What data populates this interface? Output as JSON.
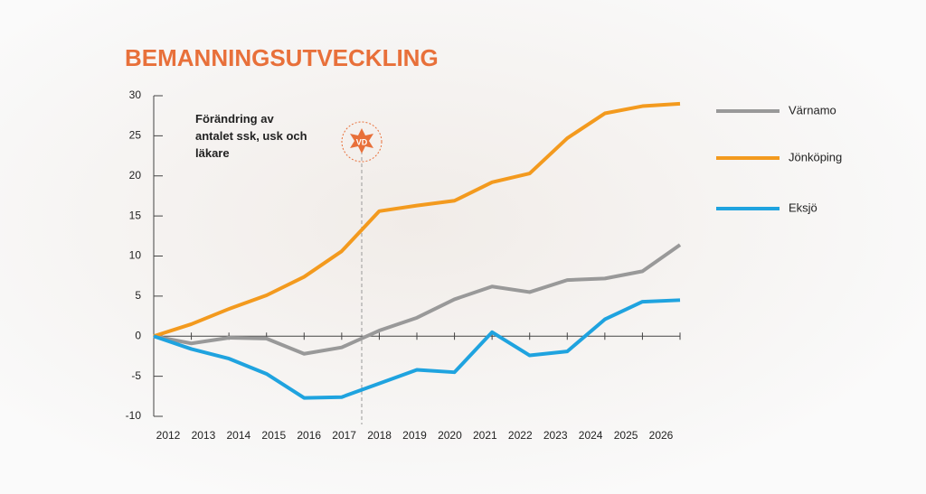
{
  "chart_data": {
    "type": "line",
    "title": "BEMANNINGSUTVECKLING",
    "annotation": "Förändring av antalet ssk, usk och läkare",
    "badge": "VD",
    "categories": [
      "2012",
      "2013",
      "2014",
      "2015",
      "2016",
      "2017",
      "2018",
      "2019",
      "2020",
      "2021",
      "2022",
      "2023",
      "2024",
      "2025",
      "2026"
    ],
    "series": [
      {
        "name": "Värnamo",
        "color": "#999999",
        "values": [
          0,
          -0.9,
          -0.2,
          -0.3,
          -2.2,
          -1.4,
          0.7,
          2.3,
          4.6,
          6.2,
          5.5,
          7,
          7.2,
          8.1,
          11.4
        ]
      },
      {
        "name": "Jönköping",
        "color": "#f39a1e",
        "values": [
          0,
          1.5,
          3.4,
          5.1,
          7.4,
          10.6,
          15.6,
          16.3,
          16.9,
          19.2,
          20.3,
          24.7,
          27.8,
          28.7,
          29
        ]
      },
      {
        "name": "Eksjö",
        "color": "#1fa3df",
        "values": [
          0,
          -1.6,
          -2.8,
          -4.7,
          -7.7,
          -7.6,
          -5.9,
          -4.2,
          -4.5,
          0.5,
          -2.4,
          -1.9,
          2.1,
          4.3,
          4.5
        ]
      }
    ],
    "ylim": [
      -10,
      30
    ],
    "yticks": [
      -10,
      -5,
      0,
      5,
      10,
      15,
      20,
      25,
      30
    ]
  }
}
